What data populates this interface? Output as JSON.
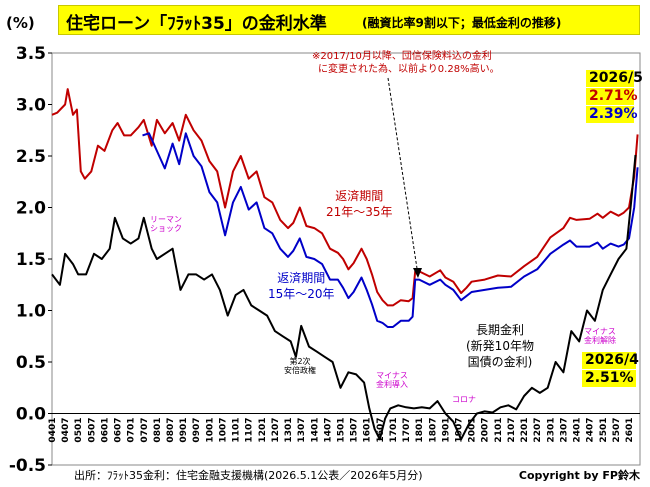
{
  "header": {
    "title_main": "住宅ローン「ﾌﾗｯﾄ35」の金利水準",
    "title_sub": "(融資比率9割以下；最低金利の推移)",
    "y_unit": "(%)"
  },
  "footer": {
    "source": "出所：ﾌﾗｯﾄ35金利：住宅金融支援機構(2026.5.1公表／2026年5月分)",
    "copyright": "Copyright by FP鈴木"
  },
  "annotations": {
    "note_line1": "※2017/10月以降、団信保険料込の金利",
    "note_line2": "に変更された為、以前より0.28%高い。",
    "red_label_1": "返済期間",
    "red_label_2": "21年～35年",
    "blue_label_1": "返済期間",
    "blue_label_2": "15年～20年",
    "black_label_1": "長期金利",
    "black_label_2": "(新発10年物",
    "black_label_3": "国債の金利)",
    "lehman_1": "リーマン",
    "lehman_2": "ショック",
    "abe_1": "第2次",
    "abe_2": "安倍政権",
    "negative_1": "マイナス",
    "negative_2": "金利導入",
    "corona": "コロナ",
    "neg_end_1": "マイナス",
    "neg_end_2": "金利解除",
    "latest_date": "2026/5",
    "latest_red": "2.71%",
    "latest_blue": "2.39%",
    "jgb_date": "2026/4",
    "jgb_value": "2.51%"
  },
  "colors": {
    "red": "#c00000",
    "blue": "#0000c8",
    "black": "#000000",
    "highlight": "#ffff00",
    "purple": "#cc00cc"
  },
  "chart_data": {
    "type": "line",
    "ylim": [
      -0.5,
      3.5
    ],
    "yticks": [
      -0.5,
      0.0,
      0.5,
      1.0,
      1.5,
      2.0,
      2.5,
      3.0,
      3.5
    ],
    "ytick_labels": [
      "-0.5",
      "0.0",
      "0.5",
      "1.0",
      "1.5",
      "2.0",
      "2.5",
      "3.0",
      "3.5"
    ],
    "xlim": [
      2004.0,
      2026.42
    ],
    "xtick_labels": [
      "0401",
      "0407",
      "0501",
      "0507",
      "0601",
      "0607",
      "0701",
      "0707",
      "0801",
      "0807",
      "0901",
      "0907",
      "1001",
      "1007",
      "1101",
      "1107",
      "1201",
      "1207",
      "1301",
      "1307",
      "1401",
      "1407",
      "1501",
      "1507",
      "1601",
      "1607",
      "1701",
      "1707",
      "1801",
      "1807",
      "1901",
      "1907",
      "2001",
      "2007",
      "2101",
      "2107",
      "2201",
      "2207",
      "2301",
      "2307",
      "2401",
      "2407",
      "2501",
      "2507",
      "2601"
    ],
    "grid": false,
    "series": [
      {
        "name": "返済期間21年～35年",
        "color": "#c00000",
        "x": [
          2004.0,
          2004.2,
          2004.5,
          2004.6,
          2004.8,
          2004.95,
          2005.1,
          2005.25,
          2005.5,
          2005.75,
          2006.0,
          2006.3,
          2006.5,
          2006.75,
          2007.0,
          2007.3,
          2007.5,
          2007.8,
          2008.0,
          2008.3,
          2008.6,
          2008.85,
          2009.1,
          2009.4,
          2009.7,
          2010.0,
          2010.3,
          2010.6,
          2010.9,
          2011.2,
          2011.5,
          2011.8,
          2012.1,
          2012.4,
          2012.7,
          2013.0,
          2013.2,
          2013.45,
          2013.7,
          2014.0,
          2014.3,
          2014.6,
          2014.9,
          2015.1,
          2015.3,
          2015.5,
          2015.8,
          2016.0,
          2016.2,
          2016.4,
          2016.6,
          2016.8,
          2017.0,
          2017.3,
          2017.6,
          2017.75,
          2017.85,
          2018.0,
          2018.4,
          2018.8,
          2019.0,
          2019.3,
          2019.6,
          2019.8,
          2020.0,
          2020.5,
          2021.0,
          2021.5,
          2022.0,
          2022.5,
          2023.0,
          2023.5,
          2023.75,
          2024.0,
          2024.5,
          2024.8,
          2025.0,
          2025.3,
          2025.6,
          2025.8,
          2026.0,
          2026.2,
          2026.33
        ],
        "y": [
          2.9,
          2.92,
          3.0,
          3.15,
          2.9,
          2.95,
          2.35,
          2.28,
          2.35,
          2.6,
          2.55,
          2.75,
          2.82,
          2.7,
          2.7,
          2.78,
          2.85,
          2.6,
          2.85,
          2.72,
          2.82,
          2.65,
          2.9,
          2.75,
          2.65,
          2.45,
          2.35,
          2.0,
          2.35,
          2.5,
          2.28,
          2.35,
          2.1,
          2.05,
          1.88,
          1.8,
          1.85,
          2.0,
          1.82,
          1.8,
          1.75,
          1.6,
          1.56,
          1.5,
          1.4,
          1.46,
          1.6,
          1.5,
          1.35,
          1.18,
          1.1,
          1.05,
          1.05,
          1.1,
          1.09,
          1.12,
          1.38,
          1.38,
          1.33,
          1.39,
          1.32,
          1.28,
          1.17,
          1.22,
          1.28,
          1.3,
          1.34,
          1.33,
          1.43,
          1.52,
          1.71,
          1.8,
          1.9,
          1.88,
          1.89,
          1.94,
          1.9,
          1.96,
          1.92,
          1.95,
          2.0,
          2.3,
          2.71
        ]
      },
      {
        "name": "返済期間15年～20年",
        "color": "#0000c8",
        "x": [
          2007.45,
          2007.7,
          2008.0,
          2008.3,
          2008.6,
          2008.85,
          2009.1,
          2009.4,
          2009.7,
          2010.0,
          2010.3,
          2010.6,
          2010.9,
          2011.2,
          2011.5,
          2011.8,
          2012.1,
          2012.4,
          2012.7,
          2013.0,
          2013.2,
          2013.45,
          2013.7,
          2014.0,
          2014.3,
          2014.6,
          2014.9,
          2015.1,
          2015.3,
          2015.5,
          2015.8,
          2016.0,
          2016.2,
          2016.4,
          2016.6,
          2016.8,
          2017.0,
          2017.3,
          2017.6,
          2017.75,
          2017.85,
          2018.0,
          2018.4,
          2018.8,
          2019.0,
          2019.3,
          2019.6,
          2019.8,
          2020.0,
          2020.5,
          2021.0,
          2021.5,
          2022.0,
          2022.5,
          2023.0,
          2023.5,
          2023.75,
          2024.0,
          2024.5,
          2024.8,
          2025.0,
          2025.3,
          2025.6,
          2025.8,
          2026.0,
          2026.2,
          2026.33
        ],
        "y": [
          2.7,
          2.72,
          2.55,
          2.38,
          2.62,
          2.42,
          2.72,
          2.5,
          2.4,
          2.15,
          2.05,
          1.73,
          2.05,
          2.2,
          1.98,
          2.05,
          1.8,
          1.75,
          1.6,
          1.52,
          1.58,
          1.7,
          1.52,
          1.5,
          1.45,
          1.3,
          1.3,
          1.22,
          1.12,
          1.18,
          1.32,
          1.2,
          1.06,
          0.9,
          0.88,
          0.84,
          0.84,
          0.9,
          0.9,
          0.94,
          1.3,
          1.3,
          1.25,
          1.3,
          1.25,
          1.2,
          1.1,
          1.14,
          1.18,
          1.2,
          1.22,
          1.23,
          1.33,
          1.4,
          1.55,
          1.64,
          1.68,
          1.62,
          1.62,
          1.66,
          1.6,
          1.65,
          1.62,
          1.64,
          1.7,
          2.0,
          2.39
        ]
      },
      {
        "name": "長期金利",
        "color": "#000000",
        "x": [
          2004.0,
          2004.3,
          2004.5,
          2004.8,
          2005.0,
          2005.3,
          2005.6,
          2005.9,
          2006.2,
          2006.4,
          2006.7,
          2007.0,
          2007.3,
          2007.5,
          2007.8,
          2008.0,
          2008.3,
          2008.6,
          2008.9,
          2009.2,
          2009.5,
          2009.8,
          2010.1,
          2010.4,
          2010.7,
          2011.0,
          2011.3,
          2011.6,
          2011.9,
          2012.2,
          2012.5,
          2012.8,
          2013.1,
          2013.3,
          2013.5,
          2013.8,
          2014.1,
          2014.4,
          2014.7,
          2015.0,
          2015.3,
          2015.6,
          2015.9,
          2016.1,
          2016.3,
          2016.5,
          2016.7,
          2016.9,
          2017.2,
          2017.5,
          2017.8,
          2018.1,
          2018.4,
          2018.7,
          2019.0,
          2019.3,
          2019.6,
          2019.9,
          2020.2,
          2020.5,
          2020.8,
          2021.1,
          2021.4,
          2021.7,
          2022.0,
          2022.3,
          2022.6,
          2022.9,
          2023.2,
          2023.5,
          2023.8,
          2024.1,
          2024.4,
          2024.7,
          2025.0,
          2025.3,
          2025.6,
          2025.9,
          2026.1,
          2026.25
        ],
        "y": [
          1.35,
          1.25,
          1.55,
          1.45,
          1.35,
          1.35,
          1.55,
          1.5,
          1.6,
          1.9,
          1.7,
          1.65,
          1.7,
          1.9,
          1.6,
          1.5,
          1.55,
          1.6,
          1.2,
          1.35,
          1.35,
          1.3,
          1.35,
          1.2,
          0.95,
          1.15,
          1.2,
          1.05,
          1.0,
          0.95,
          0.8,
          0.75,
          0.7,
          0.55,
          0.85,
          0.65,
          0.6,
          0.55,
          0.5,
          0.25,
          0.4,
          0.38,
          0.3,
          0.05,
          -0.15,
          -0.25,
          -0.05,
          0.05,
          0.08,
          0.06,
          0.05,
          0.06,
          0.05,
          0.12,
          0.0,
          -0.08,
          -0.25,
          -0.1,
          0.0,
          0.02,
          0.01,
          0.06,
          0.08,
          0.04,
          0.17,
          0.25,
          0.2,
          0.25,
          0.5,
          0.4,
          0.8,
          0.7,
          1.0,
          0.9,
          1.2,
          1.35,
          1.5,
          1.6,
          2.1,
          2.51
        ]
      }
    ]
  }
}
